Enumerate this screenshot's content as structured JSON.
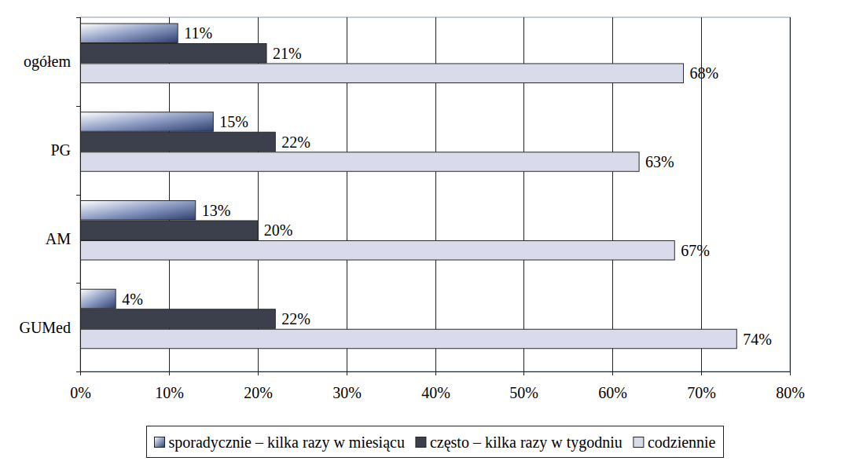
{
  "chart_data": {
    "type": "bar",
    "orientation": "horizontal",
    "categories": [
      "ogółem",
      "PG",
      "AM",
      "GUMed"
    ],
    "series": [
      {
        "name": "sporadycznie – kilka razy w miesiącu",
        "color": "#8d9dc4",
        "values": [
          11,
          15,
          13,
          4
        ],
        "value_labels": [
          "11%",
          "15%",
          "13%",
          "4%"
        ]
      },
      {
        "name": "często – kilka razy w tygodniu",
        "color": "#3c404c",
        "values": [
          21,
          22,
          20,
          22
        ],
        "value_labels": [
          "21%",
          "22%",
          "20%",
          "22%"
        ]
      },
      {
        "name": "codziennie",
        "color": "#d9dbea",
        "values": [
          68,
          63,
          67,
          74
        ],
        "value_labels": [
          "68%",
          "63%",
          "67%",
          "74%"
        ]
      }
    ],
    "xlim": [
      0,
      80
    ],
    "xticks": [
      {
        "value": 0,
        "label": "0%"
      },
      {
        "value": 10,
        "label": "10%"
      },
      {
        "value": 20,
        "label": "20%"
      },
      {
        "value": 30,
        "label": "30%"
      },
      {
        "value": 40,
        "label": "40%"
      },
      {
        "value": 50,
        "label": "50%"
      },
      {
        "value": 60,
        "label": "60%"
      },
      {
        "value": 70,
        "label": "70%"
      },
      {
        "value": 80,
        "label": "80%"
      }
    ],
    "grid": true,
    "legend": "bottom",
    "data_labels": true
  }
}
